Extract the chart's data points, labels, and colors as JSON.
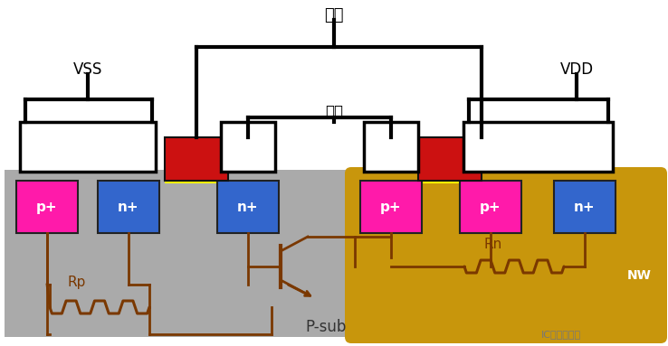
{
  "bg_color": "#ffffff",
  "psub_color": "#aaaaaa",
  "nw_color": "#c8960c",
  "pplus_color": "#ff1aaa",
  "nplus_color": "#3366cc",
  "gate_red": "#cc1111",
  "gate_yellow": "#ffff00",
  "wire_color": "#000000",
  "brown": "#7a3800",
  "label_input": "输入",
  "label_output": "输出",
  "label_vss": "VSS",
  "label_vdd": "VDD",
  "label_psub": "P-sub",
  "label_nw": "NW",
  "label_rp": "Rp",
  "label_rn": "Rn",
  "label_pp1": "p+",
  "label_np1": "n+",
  "label_np2": "n+",
  "label_pp2": "p+",
  "label_pp3": "p+",
  "label_np3": "n+"
}
